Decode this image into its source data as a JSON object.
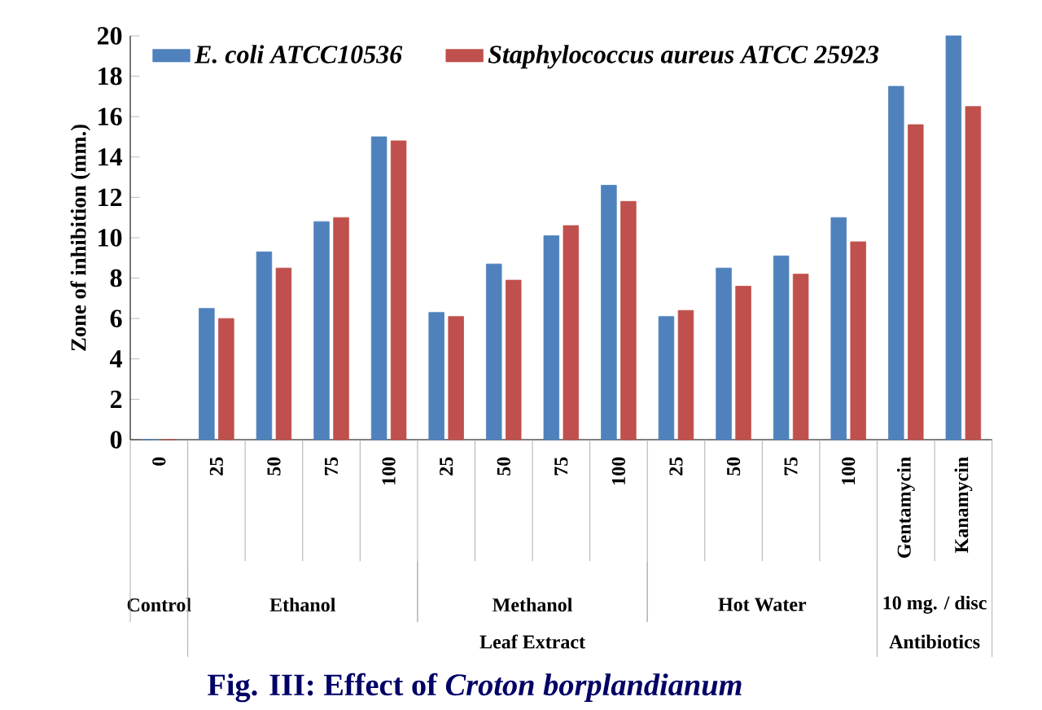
{
  "chart_data": {
    "type": "bar",
    "title": "Fig. III: Effect  of *Croton borplandianum*",
    "ylabel": "Zone of inhibition (mm.)",
    "categories": [
      "0",
      "25",
      "50",
      "75",
      "100",
      "25",
      "50",
      "75",
      "100",
      "25",
      "50",
      "75",
      "100",
      "Gentamycin",
      "Kanamycin"
    ],
    "series": [
      {
        "name": "E. coli ATCC10536",
        "color": "#4f81bd",
        "values": [
          0,
          6.5,
          9.3,
          10.8,
          15.0,
          6.3,
          8.7,
          10.1,
          12.6,
          6.1,
          8.5,
          9.1,
          11.0,
          17.5,
          20.0
        ]
      },
      {
        "name": "Staphylococcus   aureus ATCC 25923",
        "color": "#c0504d",
        "values": [
          0,
          6.0,
          8.5,
          11.0,
          14.8,
          6.1,
          7.9,
          10.6,
          11.8,
          6.4,
          7.6,
          8.2,
          9.8,
          15.6,
          16.5
        ]
      }
    ],
    "ylim": [
      0,
      20
    ],
    "yticks": [
      0,
      2,
      4,
      6,
      8,
      10,
      12,
      14,
      16,
      18,
      20
    ],
    "annotations": [
      "Control",
      "Ethanol",
      "Methanol",
      "Hot Water",
      "10 mg. / disc",
      "Leaf Extract",
      "Antibiotics"
    ],
    "legend": "top",
    "grid": false
  }
}
